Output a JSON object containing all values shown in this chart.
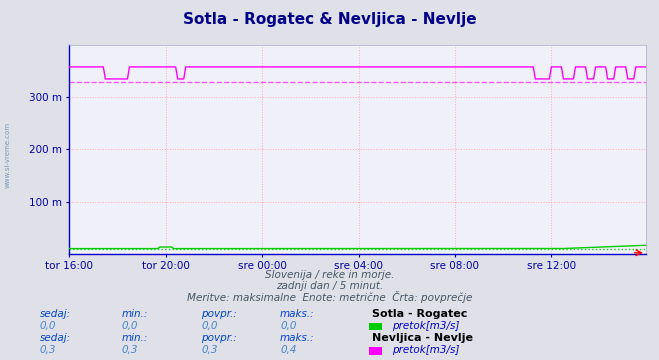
{
  "title": "Sotla - Rogatec & Nevljica - Nevlje",
  "title_fontsize": 11,
  "bg_color": "#e0e0e8",
  "plot_bg_color": "#f0f0f8",
  "grid_color": "#ffaaaa",
  "ylabel": "",
  "xlabel": "",
  "ylim": [
    0,
    400
  ],
  "yticks": [
    100,
    200,
    300
  ],
  "ytick_labels": [
    "100 m",
    "200 m",
    "300 m"
  ],
  "xtick_labels": [
    "tor 16:00",
    "tor 20:00",
    "sre 00:00",
    "sre 04:00",
    "sre 08:00",
    "sre 12:00"
  ],
  "xtick_pos": [
    0,
    48,
    96,
    144,
    192,
    240
  ],
  "n_points": 288,
  "avg_line_value": 330,
  "avg_line_color": "#ff44ff",
  "sotla_color": "#00cc00",
  "nevljica_color": "#ff00ff",
  "nevljica_high": 358,
  "nevljica_low": 335,
  "sotla_base": 10,
  "subtitle1": "Slovenija / reke in morje.",
  "subtitle2": "zadnji dan / 5 minut.",
  "subtitle3": "Meritve: maksimalne  Enote: metrične  Črta: povprečje",
  "legend1_name": "Sotla - Rogatec",
  "legend1_unit": "pretok[m3/s]",
  "legend1_color": "#00cc00",
  "legend2_name": "Nevljica - Nevlje",
  "legend2_unit": "pretok[m3/s]",
  "legend2_color": "#ff00ff",
  "stat1_labels": [
    "sedaj:",
    "min.:",
    "povpr.:",
    "maks.:"
  ],
  "stat1_values": [
    "0,0",
    "0,0",
    "0,0",
    "0,0"
  ],
  "stat2_labels": [
    "sedaj:",
    "min.:",
    "povpr.:",
    "maks.:"
  ],
  "stat2_values": [
    "0,3",
    "0,3",
    "0,3",
    "0,4"
  ],
  "left_label": "www.si-vreme.com",
  "spine_color": "#0000cc",
  "tick_color": "#0000aa",
  "label_color": "#0044cc",
  "val_color": "#4488cc"
}
